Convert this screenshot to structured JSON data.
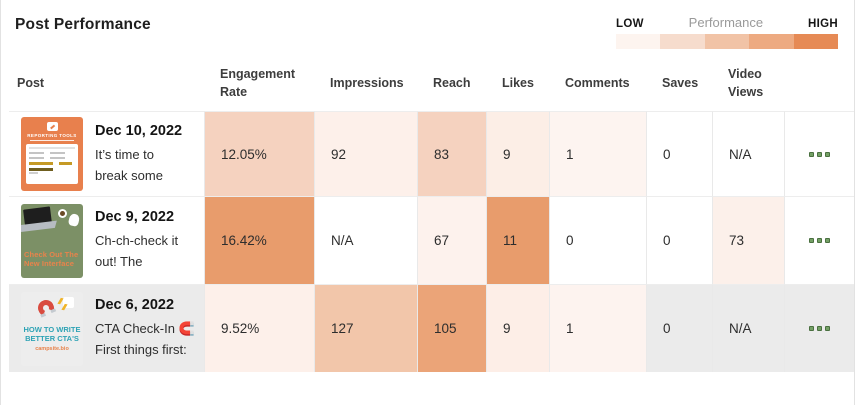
{
  "title": "Post Performance",
  "legend": {
    "low": "LOW",
    "label": "Performance",
    "high": "HIGH",
    "colors": [
      "#fdf4ef",
      "#f6dccd",
      "#f1c3a6",
      "#edaa81",
      "#e68a55"
    ]
  },
  "columns": [
    "Post",
    "Engagement Rate",
    "Impressions",
    "Reach",
    "Likes",
    "Comments",
    "Saves",
    "Video Views"
  ],
  "menu_icon": "three-squares-menu",
  "rows": [
    {
      "date": "Dec 10, 2022",
      "caption1": "It’s time to",
      "caption2": "break some",
      "row_bg": "#ffffff",
      "thumb": {
        "title": "REPORTING TOOLS"
      },
      "cells": [
        {
          "value": "12.05%",
          "bg": "#f5d2bf"
        },
        {
          "value": "92",
          "bg": "#fdf0ea"
        },
        {
          "value": "83",
          "bg": "#f5d2bf"
        },
        {
          "value": "9",
          "bg": "#fceee6"
        },
        {
          "value": "1",
          "bg": "#fdf4f0"
        },
        {
          "value": "0",
          "bg": "#ffffff"
        },
        {
          "value": "N/A",
          "bg": "#ffffff"
        }
      ]
    },
    {
      "date": "Dec 9, 2022",
      "caption1": "Ch-ch-check it",
      "caption2": "out! The",
      "row_bg": "#ffffff",
      "thumb": {
        "line1": "Check Out The",
        "line2": "New Interface"
      },
      "cells": [
        {
          "value": "16.42%",
          "bg": "#e89c6c"
        },
        {
          "value": "N/A",
          "bg": "#ffffff"
        },
        {
          "value": "67",
          "bg": "#fdf2ed"
        },
        {
          "value": "11",
          "bg": "#e89c6c"
        },
        {
          "value": "0",
          "bg": "#ffffff"
        },
        {
          "value": "0",
          "bg": "#ffffff"
        },
        {
          "value": "73",
          "bg": "#fcf0ea"
        }
      ]
    },
    {
      "date": "Dec 6, 2022",
      "caption1": "CTA Check-In 🧲",
      "caption2": "First things first:",
      "row_bg": "#ebebeb",
      "thumb": {
        "line1": "HOW TO WRITE",
        "line2": "BETTER CTA'S",
        "domain": "campsite.bio"
      },
      "cells": [
        {
          "value": "9.52%",
          "bg": "#fdf0ea"
        },
        {
          "value": "127",
          "bg": "#f2c6aa"
        },
        {
          "value": "105",
          "bg": "#eba478"
        },
        {
          "value": "9",
          "bg": "#fdeee7"
        },
        {
          "value": "1",
          "bg": "#fdf3ef"
        },
        {
          "value": "0",
          "bg": "#ebebeb"
        },
        {
          "value": "N/A",
          "bg": "#ebebeb"
        }
      ]
    }
  ],
  "chart_data": {
    "type": "heatmap",
    "title": "Post Performance",
    "columns": [
      "Engagement Rate",
      "Impressions",
      "Reach",
      "Likes",
      "Comments",
      "Saves",
      "Video Views"
    ],
    "row_labels": [
      "Dec 10, 2022",
      "Dec 9, 2022",
      "Dec 6, 2022"
    ],
    "values": [
      [
        "12.05%",
        92,
        83,
        9,
        1,
        0,
        "N/A"
      ],
      [
        "16.42%",
        "N/A",
        67,
        11,
        0,
        0,
        73
      ],
      [
        "9.52%",
        127,
        105,
        9,
        1,
        0,
        "N/A"
      ]
    ],
    "legend": {
      "low_label": "LOW",
      "high_label": "HIGH",
      "title": "Performance"
    }
  }
}
